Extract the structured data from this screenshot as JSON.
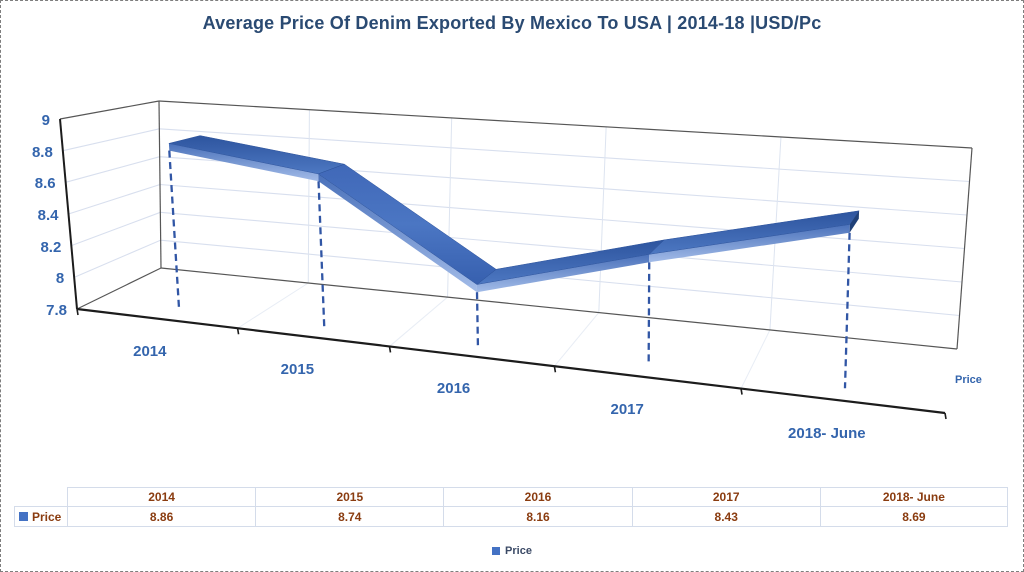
{
  "title": "Average Price Of Denim Exported By Mexico To USA | 2014-18 |USD/Pc",
  "chart_data": {
    "type": "line",
    "style": "3d-ribbon",
    "title": "Average Price Of Denim Exported By Mexico To USA | 2014-18 |USD/Pc",
    "categories": [
      "2014",
      "2015",
      "2016",
      "2017",
      "2018- June"
    ],
    "series": [
      {
        "name": "Price",
        "values": [
          8.86,
          8.74,
          8.16,
          8.43,
          8.69
        ]
      }
    ],
    "ylim": [
      7.8,
      9
    ],
    "ytick_step": 0.2,
    "yticks": [
      9,
      8.8,
      8.6,
      8.4,
      8.2,
      8,
      7.8
    ],
    "ytick_labels": [
      "9",
      "8.8",
      "8.6",
      "8.4",
      "8.2",
      "8",
      "7.8"
    ],
    "series_axis_label": "Price",
    "legend_position": "bottom",
    "grid": true,
    "drop_lines": true
  },
  "data_table": {
    "corner": "",
    "columns": [
      "2014",
      "2015",
      "2016",
      "2017",
      "2018- June"
    ],
    "rows": [
      {
        "label": "Price",
        "values": [
          "8.86",
          "8.74",
          "8.16",
          "8.43",
          "8.69"
        ]
      }
    ]
  },
  "legend": {
    "entries": [
      {
        "label": "Price",
        "color": "#4472c4"
      }
    ]
  },
  "colors": {
    "title": "#2a4a72",
    "axis_labels": "#3465ad",
    "table_text": "#8a3c10",
    "table_border": "#d4dcea",
    "series_blue": "#4472c4",
    "ribbon_dark": "#2d549e",
    "ribbon_light": "#4d78c2",
    "ribbon_steep_light": "#4b76c3",
    "ribbon_end_cap": "#1f4078",
    "ribbon_under_edge": "#a3bce8",
    "drop_line": "#3156a5",
    "gridline": "#d8dfee",
    "wall_edge": "#565656",
    "axis_line": "#1c1c1c"
  }
}
